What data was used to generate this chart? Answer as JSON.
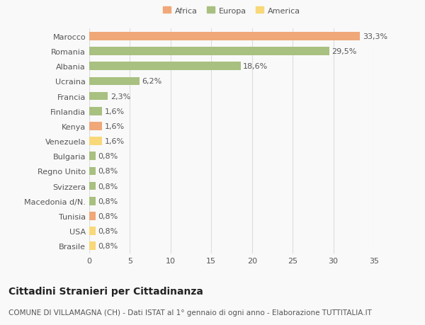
{
  "categories": [
    "Marocco",
    "Romania",
    "Albania",
    "Ucraina",
    "Francia",
    "Finlandia",
    "Kenya",
    "Venezuela",
    "Bulgaria",
    "Regno Unito",
    "Svizzera",
    "Macedonia d/N.",
    "Tunisia",
    "USA",
    "Brasile"
  ],
  "values": [
    33.3,
    29.5,
    18.6,
    6.2,
    2.3,
    1.6,
    1.6,
    1.6,
    0.8,
    0.8,
    0.8,
    0.8,
    0.8,
    0.8,
    0.8
  ],
  "labels": [
    "33,3%",
    "29,5%",
    "18,6%",
    "6,2%",
    "2,3%",
    "1,6%",
    "1,6%",
    "1,6%",
    "0,8%",
    "0,8%",
    "0,8%",
    "0,8%",
    "0,8%",
    "0,8%",
    "0,8%"
  ],
  "colors": [
    "#f0a878",
    "#a8c080",
    "#a8c080",
    "#a8c080",
    "#a8c080",
    "#a8c080",
    "#f0a878",
    "#f8d878",
    "#a8c080",
    "#a8c080",
    "#a8c080",
    "#a8c080",
    "#f0a878",
    "#f8d878",
    "#f8d878"
  ],
  "legend": [
    {
      "label": "Africa",
      "color": "#f0a878"
    },
    {
      "label": "Europa",
      "color": "#a8c080"
    },
    {
      "label": "America",
      "color": "#f8d878"
    }
  ],
  "title": "Cittadini Stranieri per Cittadinanza",
  "subtitle": "COMUNE DI VILLAMAGNA (CH) - Dati ISTAT al 1° gennaio di ogni anno - Elaborazione TUTTITALIA.IT",
  "xlim": [
    0,
    35
  ],
  "xticks": [
    0,
    5,
    10,
    15,
    20,
    25,
    30,
    35
  ],
  "background_color": "#f9f9f9",
  "grid_color": "#dddddd",
  "bar_height": 0.55,
  "title_fontsize": 10,
  "subtitle_fontsize": 7.5,
  "label_fontsize": 8,
  "tick_fontsize": 8,
  "value_fontsize": 8
}
